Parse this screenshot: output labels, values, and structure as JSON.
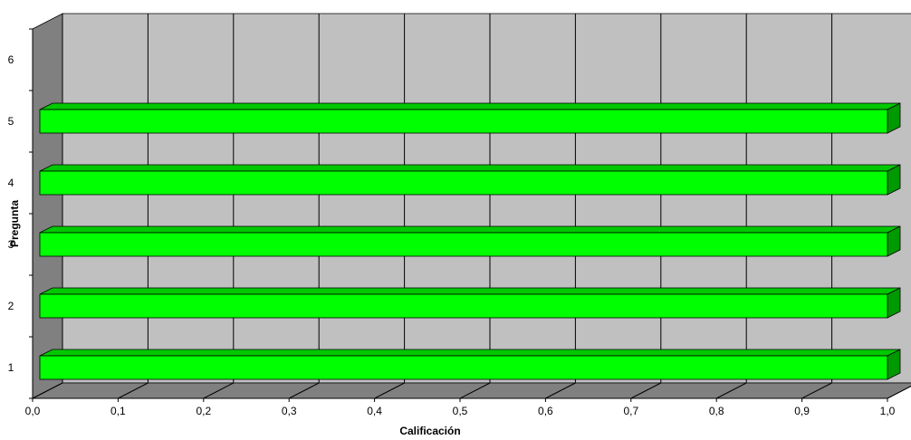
{
  "chart_data": {
    "type": "bar",
    "orientation": "horizontal",
    "three_d": true,
    "categories": [
      "1",
      "2",
      "3",
      "4",
      "5"
    ],
    "y_ticks": [
      "1",
      "2",
      "3",
      "4",
      "5",
      "6"
    ],
    "values": [
      1.0,
      1.0,
      1.0,
      1.0,
      1.0
    ],
    "x_ticks": [
      "0,0",
      "0,1",
      "0,2",
      "0,3",
      "0,4",
      "0,5",
      "0,6",
      "0,7",
      "0,8",
      "0,9",
      "1,0"
    ],
    "xlim": [
      0,
      1
    ],
    "xlabel": "Calificación",
    "ylabel": "Pregunta",
    "grid": true,
    "colors": {
      "bar_front": "#00ff00",
      "bar_top": "#00c800",
      "bar_side": "#009900",
      "back_wall": "#c0c0c0",
      "side_wall": "#808080",
      "floor": "#808080"
    }
  }
}
